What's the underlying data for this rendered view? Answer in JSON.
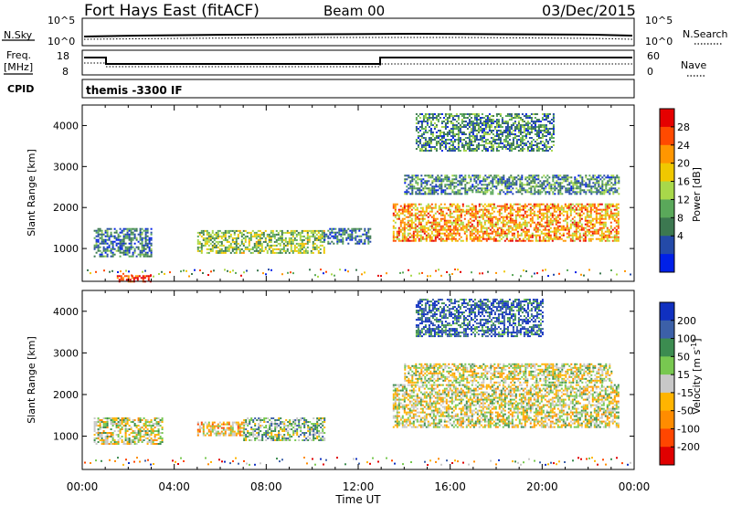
{
  "header": {
    "station": "Fort Hays East (fitACF)",
    "beam": "Beam 00",
    "date": "03/Dec/2015"
  },
  "strip_panels": {
    "nsky": {
      "label": "N.Sky",
      "right_label": "N.Search",
      "ticks_left": [
        "10^5",
        "10^0"
      ],
      "ticks_right": [
        "10^5",
        "10^0"
      ]
    },
    "freq": {
      "label_line1": "Freq.",
      "label_line2": "[MHz]",
      "right_label": "Nave",
      "ticks_left": [
        "18",
        "8"
      ],
      "ticks_right": [
        "60",
        "0"
      ]
    },
    "cpid": {
      "label": "CPID",
      "text": "themis -3300 IF"
    }
  },
  "x_axis": {
    "label": "Time UT",
    "ticks": [
      "00:00",
      "04:00",
      "08:00",
      "12:00",
      "16:00",
      "20:00",
      "00:00"
    ]
  },
  "chart_data": [
    {
      "type": "heatmap",
      "name": "power",
      "ylabel": "Slant Range [km]",
      "ylim": [
        200,
        4500
      ],
      "yticks": [
        "4000",
        "3000",
        "2000",
        "1000"
      ],
      "colorbar": {
        "label": "Power [dB]",
        "ticks": [
          "28",
          "24",
          "20",
          "16",
          "12",
          "8",
          "4"
        ],
        "colors": [
          "#e50000",
          "#ff4a00",
          "#ff9600",
          "#f0c800",
          "#a8d84a",
          "#5aa85a",
          "#3c7850",
          "#244aa8",
          "#0020e8"
        ]
      },
      "regions": [
        {
          "t0": 0.5,
          "t1": 3.0,
          "r0": 800,
          "r1": 1500,
          "c": 0.25
        },
        {
          "t0": 5.0,
          "t1": 10.5,
          "r0": 900,
          "r1": 1450,
          "c": 0.45
        },
        {
          "t0": 10.5,
          "t1": 12.5,
          "r0": 1100,
          "r1": 1500,
          "c": 0.2
        },
        {
          "t0": 13.5,
          "t1": 23.3,
          "r0": 1200,
          "r1": 2100,
          "c": 0.7
        },
        {
          "t0": 14.0,
          "t1": 23.3,
          "r0": 2350,
          "r1": 2800,
          "c": 0.3
        },
        {
          "t0": 14.5,
          "t1": 20.5,
          "r0": 3400,
          "r1": 4300,
          "c": 0.3
        },
        {
          "t0": 1.5,
          "t1": 3.0,
          "r0": 200,
          "r1": 350,
          "c": 0.9
        }
      ]
    },
    {
      "type": "heatmap",
      "name": "velocity",
      "ylabel": "Slant Range [km]",
      "ylim": [
        200,
        4500
      ],
      "yticks": [
        "4000",
        "3000",
        "2000",
        "1000"
      ],
      "colorbar": {
        "label": "Velocity [m s",
        "label_exp": "-1",
        "label_close": "]",
        "ticks": [
          "200",
          "100",
          "50",
          "15",
          "-15",
          "-50",
          "-100",
          "-200"
        ],
        "colors": [
          "#1030c0",
          "#3c60a8",
          "#3c8c50",
          "#78c850",
          "#c8c8c8",
          "#ffb400",
          "#ff8c00",
          "#ff4600",
          "#e00000"
        ]
      },
      "regions": [
        {
          "t0": 0.5,
          "t1": 3.5,
          "r0": 800,
          "r1": 1450,
          "c": 0.5
        },
        {
          "t0": 5.0,
          "t1": 7.0,
          "r0": 1000,
          "r1": 1350,
          "c": 0.4
        },
        {
          "t0": 7.0,
          "t1": 10.5,
          "r0": 900,
          "r1": 1450,
          "c": 0.62
        },
        {
          "t0": 13.5,
          "t1": 23.3,
          "r0": 1200,
          "r1": 2250,
          "c": 0.5
        },
        {
          "t0": 14.0,
          "t1": 23.0,
          "r0": 2300,
          "r1": 2750,
          "c": 0.5
        },
        {
          "t0": 14.5,
          "t1": 20.0,
          "r0": 3400,
          "r1": 4300,
          "c": 0.85
        }
      ]
    }
  ]
}
